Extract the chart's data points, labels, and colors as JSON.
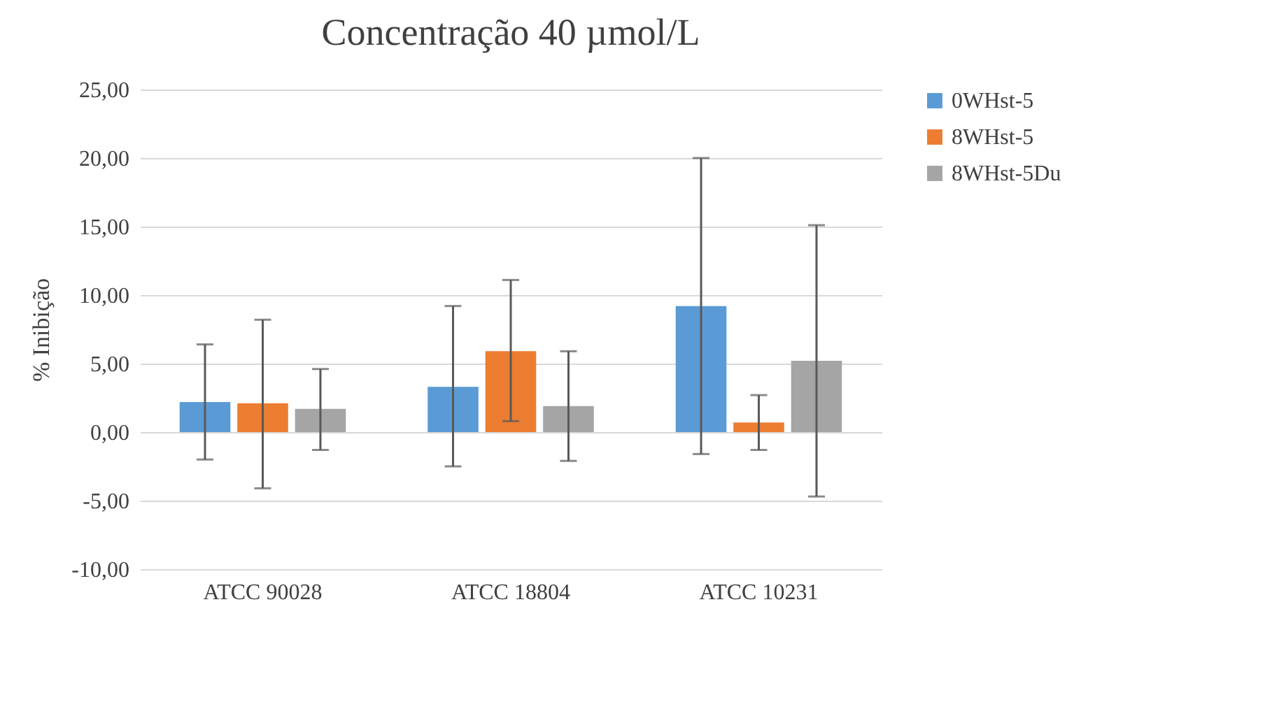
{
  "chart_data": {
    "type": "bar",
    "title": "Concentração 40 µmol/L",
    "ylabel": "% Inibição",
    "categories": [
      "ATCC 90028",
      "ATCC 18804",
      "ATCC 10231"
    ],
    "series": [
      {
        "name": "0WHst-5",
        "color": "#5b9bd5",
        "values": [
          2.2,
          3.3,
          9.2
        ],
        "errors": [
          [
            -2.0,
            6.4
          ],
          [
            -2.5,
            9.2
          ],
          [
            -1.6,
            20.0
          ]
        ]
      },
      {
        "name": "8WHst-5",
        "color": "#ed7d31",
        "values": [
          2.1,
          5.9,
          0.7
        ],
        "errors": [
          [
            -4.1,
            8.2
          ],
          [
            0.8,
            11.1
          ],
          [
            -1.3,
            2.7
          ]
        ]
      },
      {
        "name": "8WHst-5Du",
        "color": "#a5a5a5",
        "values": [
          1.7,
          1.9,
          5.2
        ],
        "errors": [
          [
            -1.3,
            4.6
          ],
          [
            -2.1,
            5.9
          ],
          [
            -4.7,
            15.1
          ]
        ]
      }
    ],
    "ylim": [
      -10,
      25
    ],
    "yticks": [
      {
        "value": -10,
        "label": "-10,00"
      },
      {
        "value": -5,
        "label": "-5,00"
      },
      {
        "value": 0,
        "label": "0,00"
      },
      {
        "value": 5,
        "label": "5,00"
      },
      {
        "value": 10,
        "label": "10,00"
      },
      {
        "value": 15,
        "label": "15,00"
      },
      {
        "value": 20,
        "label": "20,00"
      },
      {
        "value": 25,
        "label": "25,00"
      }
    ],
    "grid": "y",
    "legend": "right"
  }
}
